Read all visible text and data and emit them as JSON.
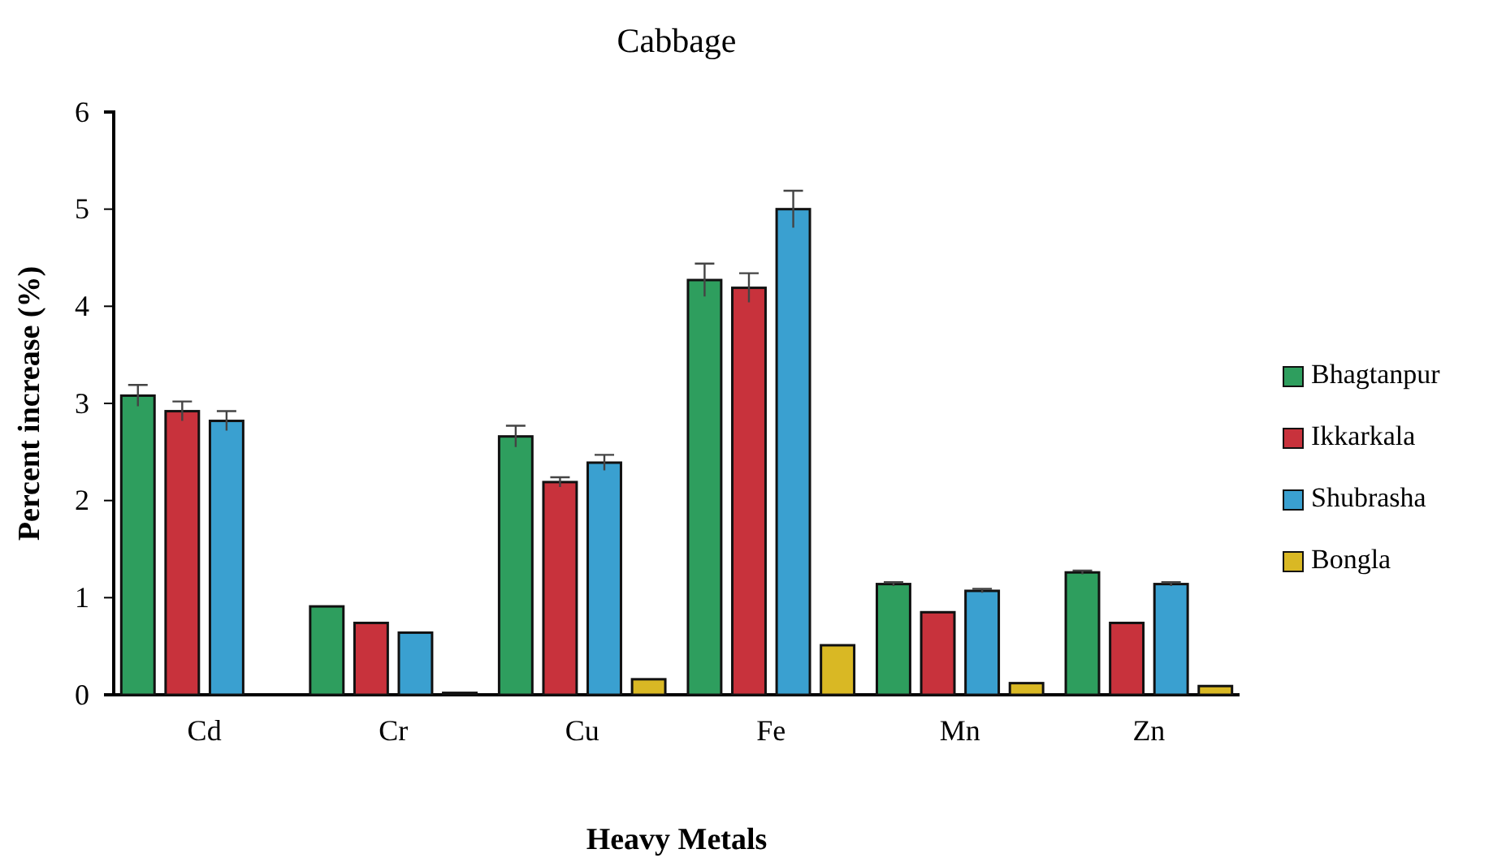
{
  "chart_data": {
    "type": "bar",
    "title": "Cabbage",
    "xlabel": "Heavy Metals",
    "ylabel": "Percent increase (%)",
    "categories": [
      "Cd",
      "Cr",
      "Cu",
      "Fe",
      "Mn",
      "Zn"
    ],
    "series": [
      {
        "name": "Bhagtanpur",
        "color": "#2e9e5e",
        "values": [
          3.08,
          0.91,
          2.66,
          4.27,
          1.14,
          1.26
        ],
        "errors": [
          0.11,
          null,
          0.11,
          0.17,
          0.02,
          0.02
        ]
      },
      {
        "name": "Ikkarkala",
        "color": "#c8323c",
        "values": [
          2.92,
          0.74,
          2.19,
          4.19,
          0.85,
          0.74
        ],
        "errors": [
          0.1,
          null,
          0.05,
          0.15,
          null,
          null
        ]
      },
      {
        "name": "Shubrasha",
        "color": "#3aa0d0",
        "values": [
          2.82,
          0.64,
          2.39,
          5.0,
          1.07,
          1.14
        ],
        "errors": [
          0.1,
          null,
          0.08,
          0.19,
          0.02,
          0.02
        ]
      },
      {
        "name": "Bongla",
        "color": "#d9b824",
        "values": [
          0,
          0.02,
          0.16,
          0.51,
          0.12,
          0.09
        ]
      }
    ],
    "ylim": [
      0,
      6
    ],
    "yticks": [
      0,
      1,
      2,
      3,
      4,
      5,
      6
    ],
    "grid": false,
    "legend": "right"
  }
}
